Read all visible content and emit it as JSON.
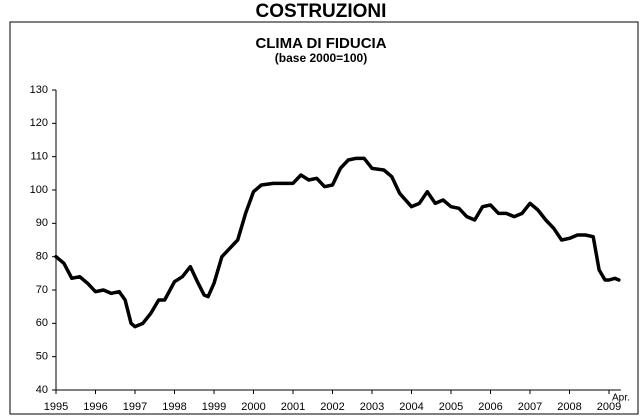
{
  "chart_data": {
    "type": "line",
    "title": "COSTRUZIONI",
    "subtitle": "CLIMA DI FIDUCIA",
    "note": "(base 2000=100)",
    "annotation": "Apr.",
    "color": "#000000",
    "x": [
      1995.0,
      1995.2,
      1995.4,
      1995.6,
      1995.8,
      1996.0,
      1996.2,
      1996.4,
      1996.6,
      1996.75,
      1996.9,
      1997.0,
      1997.2,
      1997.4,
      1997.6,
      1997.75,
      1998.0,
      1998.2,
      1998.4,
      1998.6,
      1998.75,
      1998.85,
      1999.0,
      1999.2,
      1999.4,
      1999.6,
      1999.8,
      2000.0,
      2000.2,
      2000.5,
      2000.8,
      2001.0,
      2001.2,
      2001.4,
      2001.6,
      2001.8,
      2002.0,
      2002.2,
      2002.4,
      2002.6,
      2002.8,
      2003.0,
      2003.3,
      2003.5,
      2003.7,
      2004.0,
      2004.2,
      2004.4,
      2004.6,
      2004.8,
      2005.0,
      2005.2,
      2005.4,
      2005.6,
      2005.8,
      2006.0,
      2006.2,
      2006.4,
      2006.6,
      2006.8,
      2007.0,
      2007.2,
      2007.4,
      2007.6,
      2007.8,
      2008.0,
      2008.2,
      2008.4,
      2008.6,
      2008.75,
      2008.9,
      2009.0,
      2009.15,
      2009.25
    ],
    "values": [
      80,
      78,
      73.5,
      74,
      72,
      69.5,
      70,
      69,
      69.5,
      67,
      60,
      59,
      60,
      63,
      67,
      67,
      72.5,
      74,
      77,
      72,
      68.5,
      68,
      72,
      80,
      82.5,
      85,
      93,
      99.5,
      101.5,
      102,
      102,
      102,
      104.5,
      103,
      103.5,
      101,
      101.5,
      106.5,
      109,
      109.5,
      109.5,
      106.5,
      106,
      104,
      99,
      95,
      96,
      99.5,
      96,
      97,
      95,
      94.5,
      92,
      91,
      95,
      95.5,
      93,
      93,
      92,
      93,
      96,
      94,
      91,
      88.5,
      85,
      85.5,
      86.5,
      86.5,
      86,
      76,
      73,
      73,
      73.5,
      73
    ],
    "xlim": [
      1995,
      2009.3
    ],
    "xticks": [
      1995,
      1996,
      1997,
      1998,
      1999,
      2000,
      2001,
      2002,
      2003,
      2004,
      2005,
      2006,
      2007,
      2008,
      2009
    ],
    "ylim": [
      40,
      130
    ],
    "yticks": [
      40,
      50,
      60,
      70,
      80,
      90,
      100,
      110,
      120,
      130
    ],
    "grid": false
  }
}
